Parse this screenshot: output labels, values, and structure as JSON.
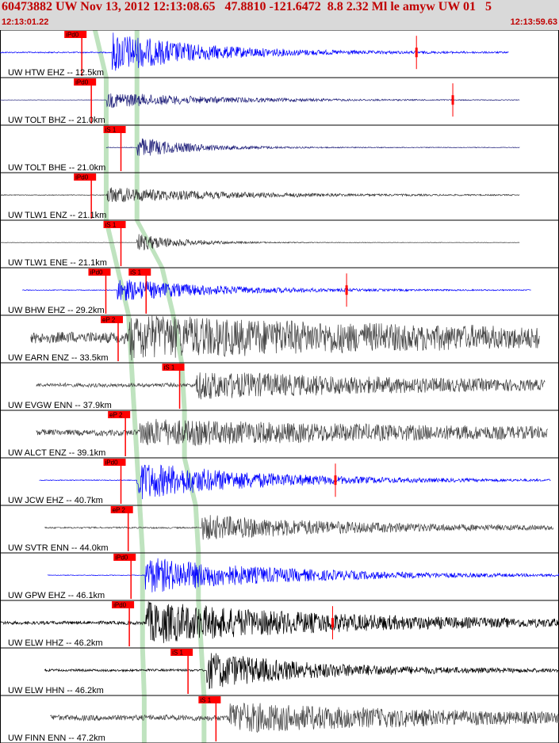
{
  "header": {
    "title": "60473882 UW Nov 13, 2012 12:13:08.65   47.8810 -121.6472  8.8 2.32 Ml le amyw UW 01   5",
    "start_time": "12:13:01.22",
    "end_time": "12:13:59.63"
  },
  "colors": {
    "header_bg": "#d9d9d9",
    "header_text": "#c00000",
    "pick_red": "#ff0000",
    "highlight_green": "#bfe3bf"
  },
  "traces": [
    {
      "label": "UW HTW EHZ -- 12.5km",
      "color": "#0000ff",
      "start": 0.0,
      "end": 0.91,
      "onset": 0.2,
      "amp": 0.9,
      "decay": 0.16,
      "noise": 0.03,
      "pick": {
        "text": "iPd0",
        "pos": 0.135
      },
      "pick2": null,
      "spike": 0.745,
      "green": [
        0.17,
        0.245
      ]
    },
    {
      "label": "UW TOLT BHZ -- 21.0km",
      "color": "#20207a",
      "start": 0.0,
      "end": 0.93,
      "onset": 0.19,
      "amp": 0.35,
      "decay": 0.2,
      "noise": 0.02,
      "pick": {
        "text": "iPd0",
        "pos": 0.152
      },
      "pick2": null,
      "spike": 0.81,
      "green": [
        0.19,
        0.245
      ]
    },
    {
      "label": "UW TOLT BHE -- 21.0km",
      "color": "#20207a",
      "start": 0.19,
      "end": 0.93,
      "onset": 0.245,
      "amp": 0.45,
      "decay": 0.1,
      "noise": 0.03,
      "pick": {
        "text": "iS 1",
        "pos": 0.205
      },
      "pick2": null,
      "spike": null,
      "green": [
        0.19,
        0.245
      ]
    },
    {
      "label": "UW TLW1 ENZ -- 21.1km",
      "color": "#333333",
      "start": 0.0,
      "end": 0.93,
      "onset": 0.19,
      "amp": 0.35,
      "decay": 0.22,
      "noise": 0.04,
      "pick": {
        "text": "iPd0",
        "pos": 0.152
      },
      "pick2": null,
      "spike": null,
      "green": [
        0.19,
        0.245
      ]
    },
    {
      "label": "UW TLW1 ENE -- 21.1km",
      "color": "#333333",
      "start": 0.0,
      "end": 0.93,
      "onset": 0.245,
      "amp": 0.4,
      "decay": 0.08,
      "noise": 0.02,
      "pick": {
        "text": "iS 1",
        "pos": 0.205
      },
      "pick2": null,
      "spike": null,
      "green": [
        0.19,
        0.245
      ]
    },
    {
      "label": "UW BHW EHZ -- 29.2km",
      "color": "#0000ff",
      "start": 0.04,
      "end": 0.95,
      "onset": 0.21,
      "amp": 0.5,
      "decay": 0.18,
      "noise": 0.03,
      "pick": {
        "text": "iPd0",
        "pos": 0.178
      },
      "pick2": {
        "text": "iS 1",
        "pos": 0.25
      },
      "spike": 0.62,
      "green": [
        0.21,
        0.29
      ]
    },
    {
      "label": "UW EARN ENZ -- 33.5km",
      "color": "#444444",
      "start": 0.055,
      "end": 0.965,
      "onset": 0.23,
      "amp": 0.8,
      "decay": 0.6,
      "noise": 0.3,
      "pick": {
        "text": "eP 2",
        "pos": 0.2
      },
      "pick2": null,
      "spike": null,
      "green": [
        0.23,
        0.31
      ]
    },
    {
      "label": "UW EVGW ENN -- 37.9km",
      "color": "#444444",
      "start": 0.065,
      "end": 0.975,
      "onset": 0.35,
      "amp": 0.55,
      "decay": 0.5,
      "noise": 0.15,
      "pick": {
        "text": "iS 1",
        "pos": 0.31
      },
      "pick2": null,
      "spike": null,
      "green": [
        0.235,
        0.325
      ]
    },
    {
      "label": "UW ALCT ENZ -- 39.1km",
      "color": "#444444",
      "start": 0.065,
      "end": 0.98,
      "onset": 0.25,
      "amp": 0.5,
      "decay": 0.6,
      "noise": 0.25,
      "pick": {
        "text": "eP 2",
        "pos": 0.213
      },
      "pick2": null,
      "spike": null,
      "green": [
        0.24,
        0.33
      ]
    },
    {
      "label": "UW JCW EHZ -- 40.7km",
      "color": "#0000ff",
      "start": 0.07,
      "end": 0.985,
      "onset": 0.245,
      "amp": 0.85,
      "decay": 0.22,
      "noise": 0.02,
      "pick": {
        "text": "iPd0",
        "pos": 0.205
      },
      "pick2": null,
      "spike": 0.6,
      "green": [
        0.245,
        0.33
      ]
    },
    {
      "label": "UW SVTR ENN -- 44.0km",
      "color": "#444444",
      "start": 0.08,
      "end": 0.99,
      "onset": 0.36,
      "amp": 0.55,
      "decay": 0.3,
      "noise": 0.06,
      "pick": {
        "text": "eP 2",
        "pos": 0.218
      },
      "pick2": null,
      "spike": null,
      "green": [
        0.25,
        0.35
      ]
    },
    {
      "label": "UW GPW EHZ -- 46.1km",
      "color": "#0000ff",
      "start": 0.085,
      "end": 1.0,
      "onset": 0.26,
      "amp": 0.8,
      "decay": 0.25,
      "noise": 0.02,
      "pick": {
        "text": "iPd0",
        "pos": 0.223
      },
      "pick2": null,
      "spike": null,
      "green": [
        0.255,
        0.355
      ]
    },
    {
      "label": "UW ELW HHZ -- 46.2km",
      "color": "#000000",
      "start": 0.0,
      "end": 1.0,
      "onset": 0.26,
      "amp": 0.9,
      "decay": 0.35,
      "noise": 0.08,
      "pick": {
        "text": "iPd0",
        "pos": 0.22
      },
      "pick2": null,
      "spike": 0.595,
      "green": [
        0.255,
        0.355
      ]
    },
    {
      "label": "UW ELW HHN -- 46.2km",
      "color": "#000000",
      "start": 0.08,
      "end": 1.0,
      "onset": 0.37,
      "amp": 0.8,
      "decay": 0.2,
      "noise": 0.06,
      "pick": {
        "text": "iS 1",
        "pos": 0.325
      },
      "pick2": null,
      "spike": null,
      "green": [
        0.255,
        0.36
      ]
    },
    {
      "label": "UW FINN ENN -- 47.2km",
      "color": "#444444",
      "start": 0.09,
      "end": 1.0,
      "onset": 0.41,
      "amp": 0.6,
      "decay": 0.4,
      "noise": 0.2,
      "pick": {
        "text": "iS 1",
        "pos": 0.375
      },
      "pick2": null,
      "spike": null,
      "green": [
        0.258,
        0.365
      ]
    }
  ]
}
